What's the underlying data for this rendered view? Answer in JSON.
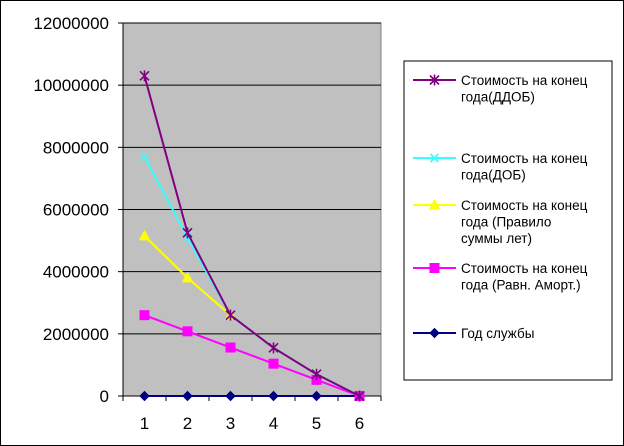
{
  "chart_data": {
    "type": "line",
    "title": "",
    "xlabel": "",
    "ylabel": "",
    "categories": [
      "1",
      "2",
      "3",
      "4",
      "5",
      "6"
    ],
    "ylim": [
      0,
      12000000
    ],
    "yticks": [
      "0",
      "2000000",
      "4000000",
      "6000000",
      "8000000",
      "10000000",
      "12000000"
    ],
    "grid": true,
    "plot_background": "#c0c0c0",
    "legend_position": "right",
    "series": [
      {
        "name": "Стоимость на конец года(ДДОБ)",
        "legend_lines": [
          "Стоимость на конец",
          "года(ДДОБ)"
        ],
        "color": "#800080",
        "marker": "star",
        "values": [
          10300000,
          5250000,
          2600000,
          1550000,
          700000,
          0
        ]
      },
      {
        "name": "Стоимость на конец года(ДОБ)",
        "legend_lines": [
          "Стоимость на конец",
          "года(ДОБ)"
        ],
        "color": "#33ffff",
        "marker": "x",
        "values": [
          7700000,
          5100000,
          2600000,
          1550000,
          700000,
          0
        ]
      },
      {
        "name": "Стоимость на конец года (Правило суммы лет)",
        "legend_lines": [
          "Стоимость на конец",
          "года (Правило",
          "суммы лет)"
        ],
        "color": "#ffff00",
        "marker": "triangle",
        "values": [
          5150000,
          3800000,
          2600000,
          null,
          null,
          null
        ]
      },
      {
        "name": "Стоимость на конец года (Равн. Аморт.)",
        "legend_lines": [
          "Стоимость на конец",
          "года (Равн. Аморт.)"
        ],
        "color": "#ff00ff",
        "marker": "square",
        "values": [
          2600000,
          2080000,
          1560000,
          1040000,
          520000,
          0
        ]
      },
      {
        "name": "Год службы",
        "legend_lines": [
          "Год службы"
        ],
        "color": "#000080",
        "marker": "diamond",
        "values": [
          1,
          2,
          3,
          4,
          5,
          6
        ]
      }
    ]
  }
}
